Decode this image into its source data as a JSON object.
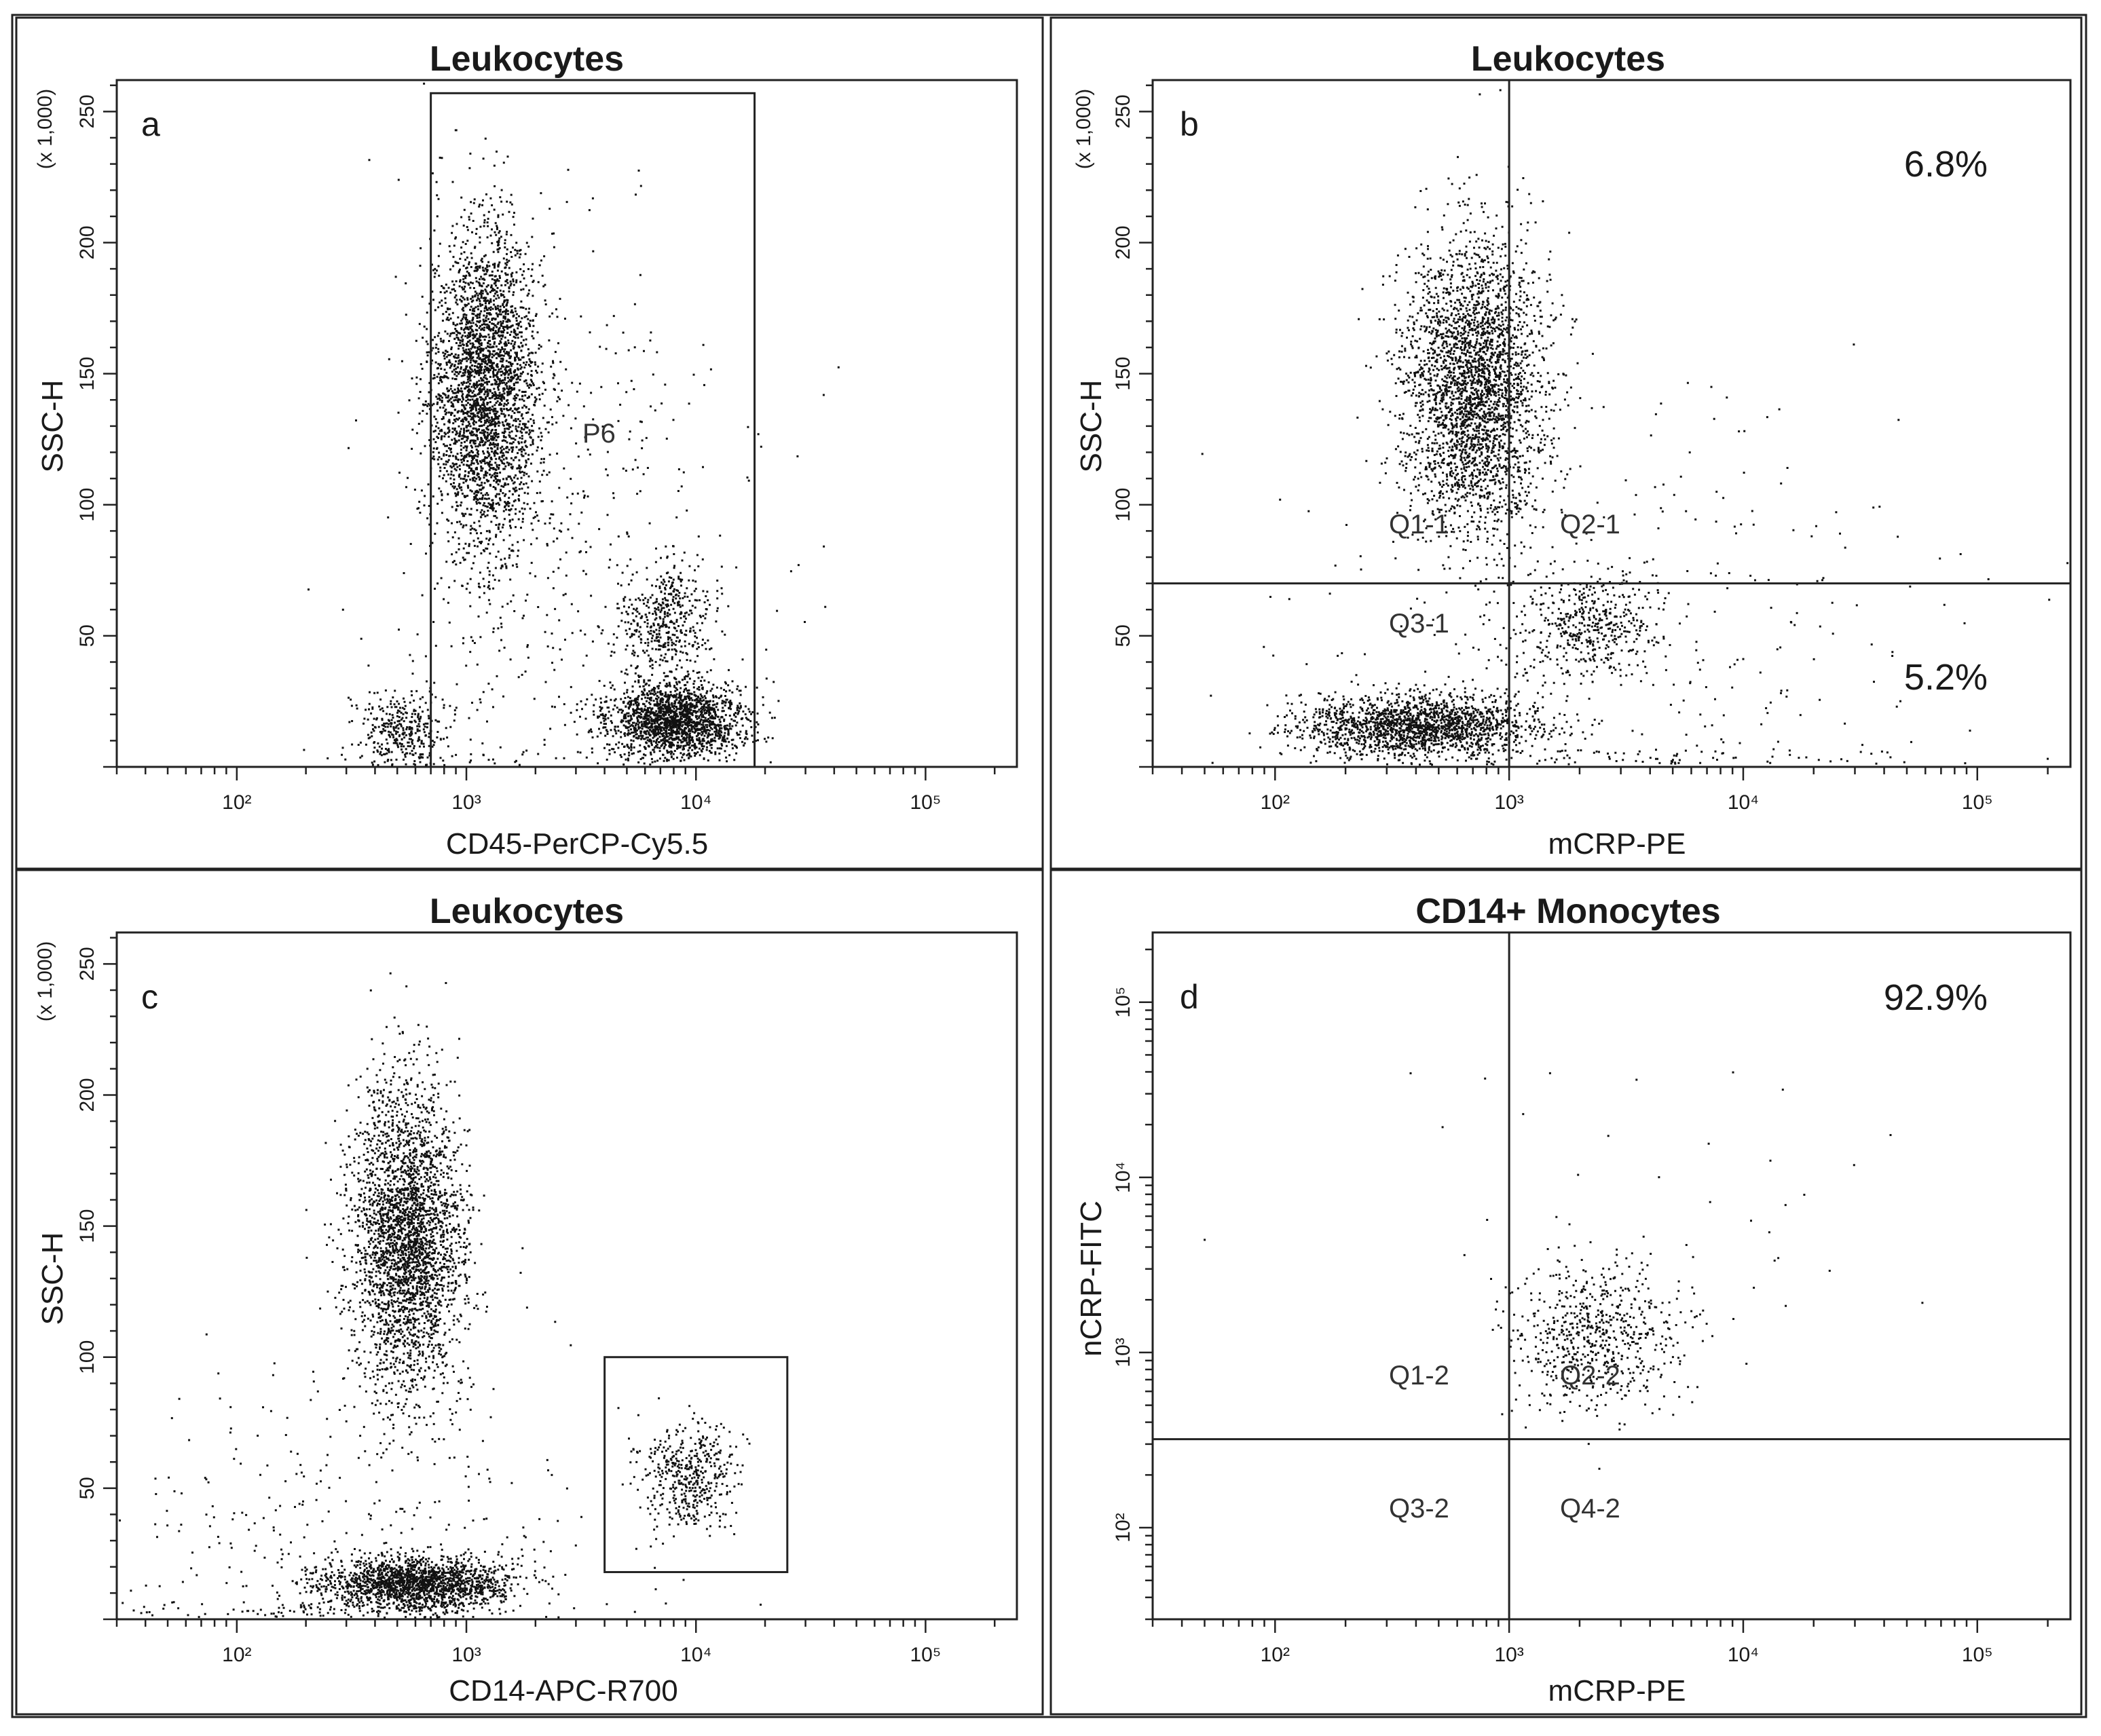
{
  "chart_data": [
    {
      "panel": "a",
      "type": "scatter",
      "title": "Leukocytes",
      "xlabel": "CD45-PerCP-Cy5.5",
      "ylabel": "SSC-H",
      "y_multiplier_label": "(x 1,000)",
      "x_scale": "log",
      "xlim": [
        30,
        250000
      ],
      "ylim": [
        0,
        262
      ],
      "x_tick_labels": [
        "10²",
        "10³",
        "10⁴",
        "10⁵"
      ],
      "x_ticks": [
        100,
        1000,
        10000,
        100000
      ],
      "y_tick_labels": [
        "50",
        "100",
        "150",
        "200",
        "250"
      ],
      "y_ticks": [
        50,
        100,
        150,
        200,
        250
      ],
      "gate": {
        "type": "rectangle",
        "label": "P6",
        "x": [
          700,
          18000
        ],
        "y": [
          0,
          257
        ]
      },
      "clusters": [
        {
          "x_center": 1200,
          "y_center": 145,
          "x_spread_log": 0.12,
          "y_spread": 30,
          "count": 3000
        },
        {
          "x_center": 8000,
          "y_center": 18,
          "x_spread_log": 0.15,
          "y_spread": 7,
          "count": 1800
        },
        {
          "x_center": 7500,
          "y_center": 55,
          "x_spread_log": 0.1,
          "y_spread": 10,
          "count": 450
        },
        {
          "x_center": 520,
          "y_center": 14,
          "x_spread_log": 0.1,
          "y_spread": 7,
          "count": 350
        },
        {
          "x_center": 2500,
          "y_center": 80,
          "x_spread_log": 0.4,
          "y_spread": 60,
          "count": 500
        }
      ]
    },
    {
      "panel": "b",
      "type": "scatter",
      "title": "Leukocytes",
      "xlabel": "mCRP-PE",
      "ylabel": "SSC-H",
      "y_multiplier_label": "(x 1,000)",
      "x_scale": "log",
      "xlim": [
        30,
        250000
      ],
      "ylim": [
        0,
        262
      ],
      "x_tick_labels": [
        "10²",
        "10³",
        "10⁴",
        "10⁵"
      ],
      "x_ticks": [
        100,
        1000,
        10000,
        100000
      ],
      "y_tick_labels": [
        "50",
        "100",
        "150",
        "200",
        "250"
      ],
      "y_ticks": [
        50,
        100,
        150,
        200,
        250
      ],
      "quadrant_gate": {
        "x": 1000,
        "y": 70
      },
      "quadrant_labels": [
        "Q1-1",
        "Q2-1",
        "Q3-1"
      ],
      "percentages": {
        "upper_right": "6.8%",
        "lower_right": "5.2%"
      },
      "clusters": [
        {
          "x_center": 700,
          "y_center": 145,
          "x_spread_log": 0.15,
          "y_spread": 28,
          "count": 3000
        },
        {
          "x_center": 400,
          "y_center": 16,
          "x_spread_log": 0.25,
          "y_spread": 6,
          "count": 1800
        },
        {
          "x_center": 2200,
          "y_center": 55,
          "x_spread_log": 0.15,
          "y_spread": 10,
          "count": 450
        },
        {
          "x_center": 3000,
          "y_center": 40,
          "x_spread_log": 0.7,
          "y_spread": 50,
          "count": 400
        }
      ]
    },
    {
      "panel": "c",
      "type": "scatter",
      "title": "Leukocytes",
      "xlabel": "CD14-APC-R700",
      "ylabel": "SSC-H",
      "y_multiplier_label": "(x 1,000)",
      "x_scale": "log",
      "xlim": [
        30,
        250000
      ],
      "ylim": [
        0,
        262
      ],
      "x_tick_labels": [
        "10²",
        "10³",
        "10⁴",
        "10⁵"
      ],
      "x_ticks": [
        100,
        1000,
        10000,
        100000
      ],
      "y_tick_labels": [
        "50",
        "100",
        "150",
        "200",
        "250"
      ],
      "y_ticks": [
        50,
        100,
        150,
        200,
        250
      ],
      "gate": {
        "type": "rectangle",
        "label": "",
        "x": [
          4000,
          25000
        ],
        "y": [
          18,
          100
        ]
      },
      "clusters": [
        {
          "x_center": 550,
          "y_center": 145,
          "x_spread_log": 0.12,
          "y_spread": 30,
          "count": 3000
        },
        {
          "x_center": 600,
          "y_center": 14,
          "x_spread_log": 0.2,
          "y_spread": 5,
          "count": 1800
        },
        {
          "x_center": 9500,
          "y_center": 55,
          "x_spread_log": 0.1,
          "y_spread": 10,
          "count": 450
        },
        {
          "x_center": 300,
          "y_center": 30,
          "x_spread_log": 0.6,
          "y_spread": 40,
          "count": 400
        }
      ]
    },
    {
      "panel": "d",
      "type": "scatter",
      "title": "CD14+ Monocytes",
      "xlabel": "mCRP-PE",
      "ylabel": "nCRP-FITC",
      "x_scale": "log",
      "y_scale": "log",
      "xlim": [
        30,
        250000
      ],
      "ylim": [
        30,
        250000
      ],
      "x_tick_labels": [
        "10²",
        "10³",
        "10⁴",
        "10⁵"
      ],
      "x_ticks": [
        100,
        1000,
        10000,
        100000
      ],
      "y_tick_labels": [
        "10²",
        "10³",
        "10⁴",
        "10⁵"
      ],
      "y_ticks": [
        100,
        1000,
        10000,
        100000
      ],
      "quadrant_gate": {
        "x": 1000,
        "y": 320
      },
      "quadrant_labels": [
        "Q1-2",
        "Q2-2",
        "Q3-2",
        "Q4-2"
      ],
      "percentages": {
        "upper_right": "92.9%"
      },
      "clusters": [
        {
          "x_center": 2300,
          "y_center": 1200,
          "x_spread_log": 0.18,
          "y_spread_log": 0.22,
          "count": 650
        },
        {
          "x_center": 4000,
          "y_center": 8000,
          "x_spread_log": 0.6,
          "y_spread_log": 0.7,
          "count": 40
        }
      ]
    }
  ]
}
